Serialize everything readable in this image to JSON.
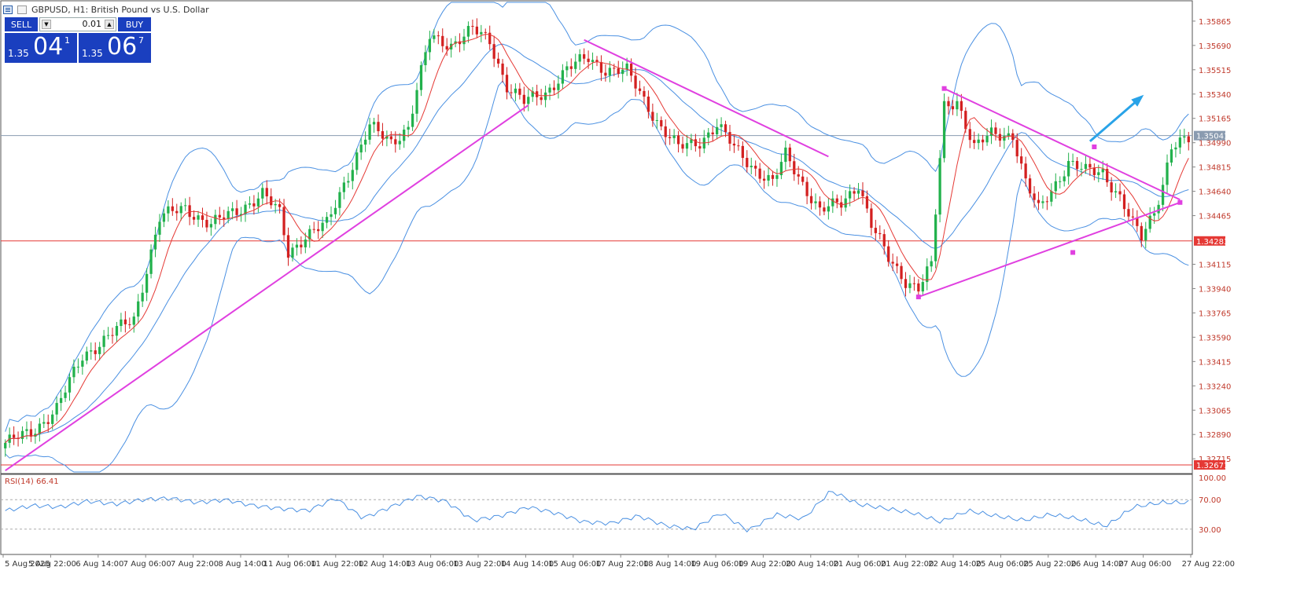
{
  "header": {
    "title": "GBPUSD, H1:  British Pound vs U.S. Dollar"
  },
  "trade_panel": {
    "sell_label": "SELL",
    "buy_label": "BUY",
    "lot_value": "0.01",
    "sell_price_small": "1.35",
    "sell_price_big": "04",
    "sell_price_sup": "1",
    "buy_price_small": "1.35",
    "buy_price_big": "06",
    "buy_price_sup": "7",
    "panel_color": "#1a3fbf"
  },
  "chart_data": {
    "type": "candlestick",
    "symbol": "GBPUSD",
    "timeframe": "H1",
    "ylim": [
      1.3262,
      1.36
    ],
    "price_ticks": [
      "1.35865",
      "1.35690",
      "1.35515",
      "1.35340",
      "1.35165",
      "1.34990",
      "1.34815",
      "1.34640",
      "1.34465",
      "1.34115",
      "1.33940",
      "1.33765",
      "1.33590",
      "1.33415",
      "1.33240",
      "1.33065",
      "1.32890",
      "1.32715"
    ],
    "time_labels": [
      "5 Aug 2025",
      "5 Aug 22:00",
      "6 Aug 14:00",
      "7 Aug 06:00",
      "7 Aug 22:00",
      "8 Aug 14:00",
      "11 Aug 06:00",
      "11 Aug 22:00",
      "12 Aug 14:00",
      "13 Aug 06:00",
      "13 Aug 22:00",
      "14 Aug 14:00",
      "15 Aug 06:00",
      "17 Aug 22:00",
      "18 Aug 14:00",
      "19 Aug 06:00",
      "19 Aug 22:00",
      "20 Aug 14:00",
      "21 Aug 06:00",
      "21 Aug 22:00",
      "22 Aug 14:00",
      "25 Aug 06:00",
      "25 Aug 22:00",
      "26 Aug 14:00",
      "27 Aug 06:00",
      "27 Aug 22:00"
    ],
    "current_price": "1.35041",
    "support_levels": [
      "1.34283",
      "1.32671"
    ],
    "price_path": [
      {
        "x": 0,
        "y": 1.3283
      },
      {
        "x": 6,
        "y": 1.329
      },
      {
        "x": 12,
        "y": 1.3308
      },
      {
        "x": 18,
        "y": 1.3345
      },
      {
        "x": 24,
        "y": 1.336
      },
      {
        "x": 30,
        "y": 1.3372
      },
      {
        "x": 36,
        "y": 1.3445
      },
      {
        "x": 42,
        "y": 1.3452
      },
      {
        "x": 48,
        "y": 1.344
      },
      {
        "x": 54,
        "y": 1.345
      },
      {
        "x": 60,
        "y": 1.3462
      },
      {
        "x": 64,
        "y": 1.3448
      },
      {
        "x": 66,
        "y": 1.342
      },
      {
        "x": 70,
        "y": 1.3432
      },
      {
        "x": 75,
        "y": 1.344
      },
      {
        "x": 79,
        "y": 1.347
      },
      {
        "x": 85,
        "y": 1.351
      },
      {
        "x": 90,
        "y": 1.35
      },
      {
        "x": 94,
        "y": 1.351
      },
      {
        "x": 99,
        "y": 1.3575
      },
      {
        "x": 104,
        "y": 1.357
      },
      {
        "x": 109,
        "y": 1.358
      },
      {
        "x": 113,
        "y": 1.3572
      },
      {
        "x": 117,
        "y": 1.354
      },
      {
        "x": 121,
        "y": 1.3528
      },
      {
        "x": 126,
        "y": 1.3535
      },
      {
        "x": 131,
        "y": 1.3552
      },
      {
        "x": 136,
        "y": 1.356
      },
      {
        "x": 140,
        "y": 1.3552
      },
      {
        "x": 145,
        "y": 1.355
      },
      {
        "x": 149,
        "y": 1.353
      },
      {
        "x": 153,
        "y": 1.351
      },
      {
        "x": 157,
        "y": 1.3495
      },
      {
        "x": 162,
        "y": 1.35
      },
      {
        "x": 166,
        "y": 1.3512
      },
      {
        "x": 170,
        "y": 1.3495
      },
      {
        "x": 175,
        "y": 1.348
      },
      {
        "x": 179,
        "y": 1.347
      },
      {
        "x": 182,
        "y": 1.349
      },
      {
        "x": 186,
        "y": 1.347
      },
      {
        "x": 190,
        "y": 1.345
      },
      {
        "x": 195,
        "y": 1.3455
      },
      {
        "x": 199,
        "y": 1.347
      },
      {
        "x": 202,
        "y": 1.344
      },
      {
        "x": 206,
        "y": 1.3415
      },
      {
        "x": 210,
        "y": 1.34
      },
      {
        "x": 213,
        "y": 1.3395
      },
      {
        "x": 216,
        "y": 1.341
      },
      {
        "x": 219,
        "y": 1.3525
      },
      {
        "x": 222,
        "y": 1.353
      },
      {
        "x": 226,
        "y": 1.3495
      },
      {
        "x": 230,
        "y": 1.3505
      },
      {
        "x": 235,
        "y": 1.3505
      },
      {
        "x": 238,
        "y": 1.347
      },
      {
        "x": 241,
        "y": 1.345
      },
      {
        "x": 245,
        "y": 1.347
      },
      {
        "x": 248,
        "y": 1.3485
      },
      {
        "x": 252,
        "y": 1.3478
      },
      {
        "x": 256,
        "y": 1.3478
      },
      {
        "x": 260,
        "y": 1.346
      },
      {
        "x": 263,
        "y": 1.344
      },
      {
        "x": 265,
        "y": 1.343
      },
      {
        "x": 268,
        "y": 1.345
      },
      {
        "x": 270,
        "y": 1.347
      },
      {
        "x": 272,
        "y": 1.3497
      },
      {
        "x": 276,
        "y": 1.35
      }
    ],
    "rsi": {
      "label": "RSI(14) 66.41",
      "levels": [
        "100.00",
        "70.00",
        "30.00"
      ],
      "ylim": [
        0,
        100
      ],
      "values": [
        55,
        62,
        60,
        68,
        64,
        70,
        72,
        66,
        70,
        62,
        58,
        55,
        72,
        45,
        60,
        75,
        68,
        42,
        48,
        60,
        52,
        40,
        38,
        48,
        35,
        30,
        52,
        28,
        50,
        44,
        82,
        64,
        58,
        52,
        40,
        55,
        48,
        42,
        50,
        44,
        34,
        60,
        66,
        66
      ]
    },
    "colors": {
      "bull": "#22b14c",
      "bear": "#d32020",
      "bollinger": "#4a90e2",
      "ma": "#e53935",
      "trendline": "#e040e0",
      "hline": "#e53935",
      "arrow": "#29a3e8",
      "rsi": "#4a90e2"
    }
  }
}
